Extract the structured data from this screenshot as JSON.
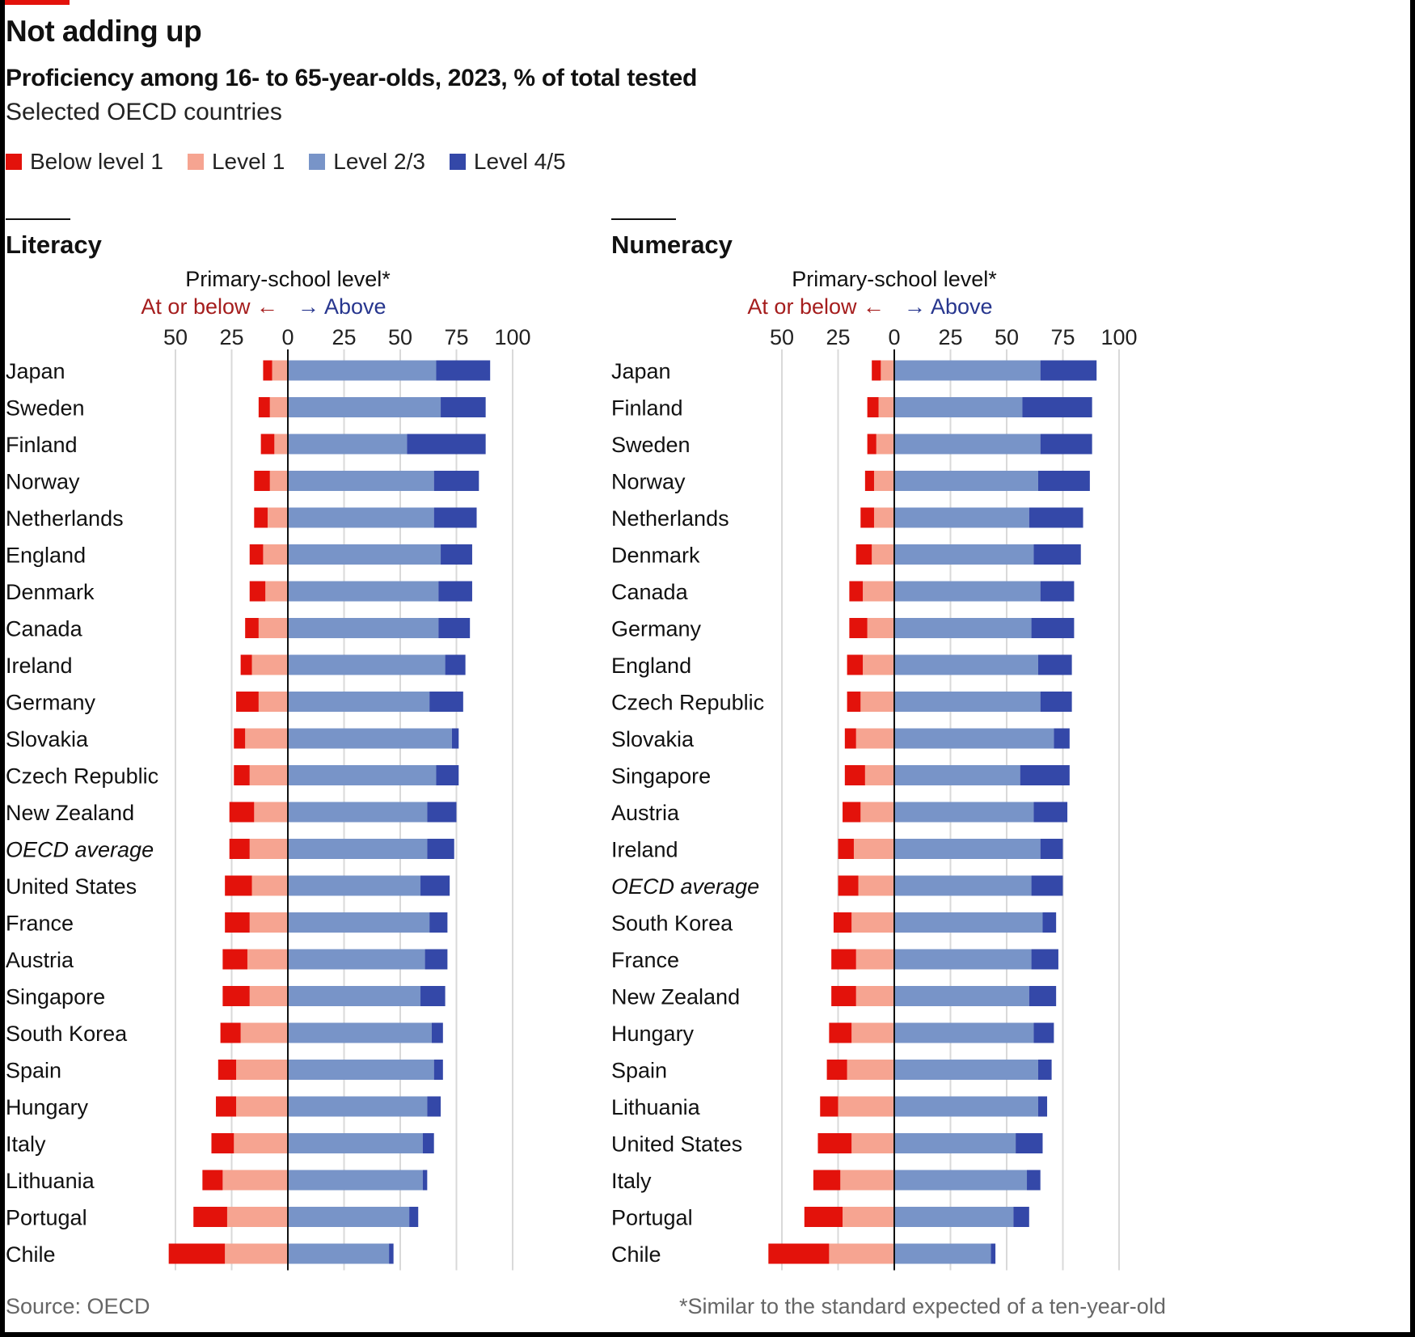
{
  "title": "Not adding up",
  "subtitle": "Proficiency among 16- to 65-year-olds, 2023, % of total tested",
  "subsubtitle": "Selected OECD countries",
  "source": "Source: OECD",
  "footnote": "*Similar to the standard expected of a ten-year-old",
  "colors": {
    "below1": "#e3120b",
    "level1": "#f6a491",
    "level23": "#7894c8",
    "level45": "#3448a8",
    "below_label": "#a51d1d",
    "above_label": "#27368e"
  },
  "legend": [
    {
      "label": "Below level 1",
      "color": "#e3120b"
    },
    {
      "label": "Level 1",
      "color": "#f6a491"
    },
    {
      "label": "Level 2/3",
      "color": "#7894c8"
    },
    {
      "label": "Level 4/5",
      "color": "#3448a8"
    }
  ],
  "chart_data": [
    {
      "type": "bar",
      "title": "Literacy",
      "axis_title": "Primary-school level*",
      "below_label": "At or below",
      "above_label": "Above",
      "arrow_left": "←",
      "arrow_right": "→",
      "ticks_labels": [
        "50",
        "25",
        "0",
        "25",
        "50",
        "75",
        "100"
      ],
      "ticks": [
        -50,
        -25,
        0,
        25,
        50,
        75,
        100
      ],
      "xlim": [
        -55,
        100
      ],
      "grid": true,
      "categories": [
        "Japan",
        "Sweden",
        "Finland",
        "Norway",
        "Netherlands",
        "England",
        "Denmark",
        "Canada",
        "Ireland",
        "Germany",
        "Slovakia",
        "Czech Republic",
        "New Zealand",
        "OECD average",
        "United States",
        "France",
        "Austria",
        "Singapore",
        "South Korea",
        "Spain",
        "Hungary",
        "Italy",
        "Lithuania",
        "Portugal",
        "Chile"
      ],
      "italic_categories": [
        "OECD average"
      ],
      "series": [
        {
          "name": "Below level 1",
          "values": [
            4,
            5,
            6,
            7,
            6,
            6,
            7,
            6,
            5,
            10,
            5,
            7,
            11,
            9,
            12,
            11,
            11,
            12,
            9,
            8,
            9,
            10,
            9,
            15,
            25
          ]
        },
        {
          "name": "Level 1",
          "values": [
            7,
            8,
            6,
            8,
            9,
            11,
            10,
            13,
            16,
            13,
            19,
            17,
            15,
            17,
            16,
            17,
            18,
            17,
            21,
            23,
            23,
            24,
            29,
            27,
            28
          ]
        },
        {
          "name": "Level 2/3",
          "values": [
            66,
            68,
            53,
            65,
            65,
            68,
            67,
            67,
            70,
            63,
            73,
            66,
            62,
            62,
            59,
            63,
            61,
            59,
            64,
            65,
            62,
            60,
            60,
            54,
            45
          ]
        },
        {
          "name": "Level 4/5",
          "values": [
            24,
            20,
            35,
            20,
            19,
            14,
            15,
            14,
            9,
            15,
            3,
            10,
            13,
            12,
            13,
            8,
            10,
            11,
            5,
            4,
            6,
            5,
            2,
            4,
            2
          ]
        }
      ]
    },
    {
      "type": "bar",
      "title": "Numeracy",
      "axis_title": "Primary-school level*",
      "below_label": "At or below",
      "above_label": "Above",
      "arrow_left": "←",
      "arrow_right": "→",
      "ticks_labels": [
        "50",
        "25",
        "0",
        "25",
        "50",
        "75",
        "100"
      ],
      "ticks": [
        -50,
        -25,
        0,
        25,
        50,
        75,
        100
      ],
      "xlim": [
        -55,
        100
      ],
      "grid": true,
      "categories": [
        "Japan",
        "Finland",
        "Sweden",
        "Norway",
        "Netherlands",
        "Denmark",
        "Canada",
        "Germany",
        "England",
        "Czech Republic",
        "Slovakia",
        "Singapore",
        "Austria",
        "Ireland",
        "OECD average",
        "South Korea",
        "France",
        "New Zealand",
        "Hungary",
        "Spain",
        "Lithuania",
        "United States",
        "Italy",
        "Portugal",
        "Chile"
      ],
      "italic_categories": [
        "OECD average"
      ],
      "series": [
        {
          "name": "Below level 1",
          "values": [
            4,
            5,
            4,
            4,
            6,
            7,
            6,
            8,
            7,
            6,
            5,
            9,
            8,
            7,
            9,
            8,
            11,
            11,
            10,
            9,
            8,
            15,
            12,
            17,
            27
          ]
        },
        {
          "name": "Level 1",
          "values": [
            6,
            7,
            8,
            9,
            9,
            10,
            14,
            12,
            14,
            15,
            17,
            13,
            15,
            18,
            16,
            19,
            17,
            17,
            19,
            21,
            25,
            19,
            24,
            23,
            29
          ]
        },
        {
          "name": "Level 2/3",
          "values": [
            65,
            57,
            65,
            64,
            60,
            62,
            65,
            61,
            64,
            65,
            71,
            56,
            62,
            65,
            61,
            66,
            61,
            60,
            62,
            64,
            64,
            54,
            59,
            53,
            43
          ]
        },
        {
          "name": "Level 4/5",
          "values": [
            25,
            31,
            23,
            23,
            24,
            21,
            15,
            19,
            15,
            14,
            7,
            22,
            15,
            10,
            14,
            6,
            12,
            12,
            9,
            6,
            4,
            12,
            6,
            7,
            2
          ]
        }
      ]
    }
  ]
}
